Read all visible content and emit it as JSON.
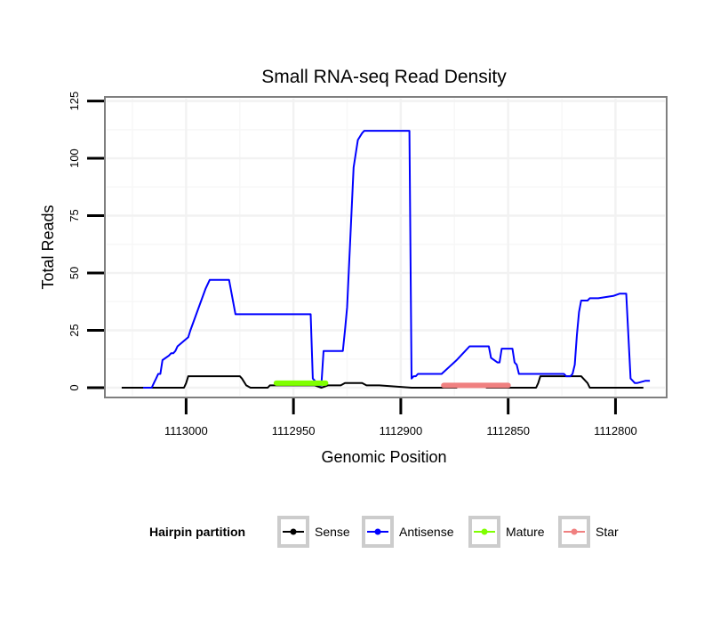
{
  "chart_data": {
    "type": "line",
    "title": "Small RNA-seq Read Density",
    "xlabel": "Genomic Position",
    "ylabel": "Total Reads",
    "x_reversed": true,
    "xlim": [
      1113037,
      1112777
    ],
    "ylim": [
      -3.5,
      126
    ],
    "x_ticks": [
      1113000,
      1112950,
      1112900,
      1112850,
      1112800
    ],
    "x_tick_labels": [
      "1113000",
      "1112950",
      "1112900",
      "1112850",
      "1112800"
    ],
    "y_ticks": [
      0,
      25,
      50,
      75,
      100,
      125
    ],
    "y_tick_labels": [
      "0",
      "25",
      "50",
      "75",
      "100",
      "125"
    ],
    "legend": {
      "title": "Hairpin partition",
      "position": "bottom",
      "entries": [
        {
          "name": "Sense",
          "color": "#000000"
        },
        {
          "name": "Antisense",
          "color": "#0000ff"
        },
        {
          "name": "Mature",
          "color": "#7fff00"
        },
        {
          "name": "Star",
          "color": "#f08080"
        }
      ]
    },
    "series": [
      {
        "name": "Sense",
        "color": "#000000",
        "x": [
          1113030,
          1113001,
          1113000,
          1112999,
          1112975,
          1112974,
          1112972,
          1112970,
          1112962,
          1112961,
          1112960,
          1112940,
          1112937,
          1112934,
          1112932,
          1112928,
          1112926,
          1112918,
          1112916,
          1112914,
          1112912,
          1112910,
          1112895,
          1112874,
          1112873,
          1112872,
          1112871,
          1112869,
          1112862,
          1112860,
          1112837,
          1112836,
          1112835,
          1112827,
          1112816,
          1112815,
          1112813,
          1112812,
          1112787
        ],
        "y": [
          0,
          0,
          2,
          5,
          5,
          4,
          1,
          0,
          0,
          1,
          1,
          1,
          0,
          1,
          1,
          1,
          2,
          2,
          1,
          1,
          1,
          1,
          0,
          0,
          1,
          1,
          1,
          1,
          1,
          0,
          0,
          2,
          5,
          5,
          5,
          4,
          2,
          0,
          0
        ]
      },
      {
        "name": "Antisense",
        "color": "#0000ff",
        "x": [
          1113020,
          1113016,
          1113015,
          1113014,
          1113013,
          1113012,
          1113011,
          1113008,
          1113007,
          1113006,
          1113005,
          1113004,
          1112999,
          1112998,
          1112991,
          1112990,
          1112989,
          1112988,
          1112987,
          1112986,
          1112985,
          1112984,
          1112983,
          1112982,
          1112981,
          1112980,
          1112977,
          1112943,
          1112942,
          1112941,
          1112938,
          1112937,
          1112936,
          1112927,
          1112926,
          1112925,
          1112922,
          1112920,
          1112918,
          1112917,
          1112914,
          1112912,
          1112911,
          1112906,
          1112905,
          1112904,
          1112896,
          1112895,
          1112894,
          1112893,
          1112892,
          1112891,
          1112890,
          1112889,
          1112888,
          1112887,
          1112882,
          1112881,
          1112874,
          1112873,
          1112870,
          1112868,
          1112859,
          1112858,
          1112855,
          1112854,
          1112853,
          1112852,
          1112851,
          1112850,
          1112849,
          1112848,
          1112847,
          1112846,
          1112845,
          1112827,
          1112826,
          1112825,
          1112824,
          1112823,
          1112822,
          1112821,
          1112820,
          1112819,
          1112818,
          1112817,
          1112816,
          1112815,
          1112814,
          1112813,
          1112812,
          1112810,
          1112808,
          1112801,
          1112798,
          1112795,
          1112793,
          1112792,
          1112791,
          1112790,
          1112786,
          1112785,
          1112784
        ],
        "y": [
          0,
          0,
          2,
          4,
          6,
          6,
          12,
          14,
          15,
          15,
          16,
          18,
          22,
          25,
          43,
          45,
          47,
          47,
          47,
          47,
          47,
          47,
          47,
          47,
          47,
          47,
          32,
          32,
          32,
          4,
          1,
          1,
          16,
          16,
          25,
          35,
          96,
          108,
          111,
          112,
          112,
          112,
          112,
          112,
          112,
          112,
          112,
          4,
          5,
          5,
          6,
          6,
          6,
          6,
          6,
          6,
          6,
          6,
          12,
          13,
          16,
          18,
          18,
          13,
          11,
          11,
          17,
          17,
          17,
          17,
          17,
          17,
          11,
          10,
          6,
          6,
          6,
          6,
          6,
          5,
          5,
          5,
          6,
          10,
          23,
          33,
          38,
          38,
          38,
          38,
          39,
          39,
          39,
          40,
          41,
          41,
          4,
          3,
          2,
          2,
          3,
          3,
          3
        ]
      }
    ],
    "segments": [
      {
        "name": "Mature",
        "color": "#7fff00",
        "x_start": 1112958,
        "x_end": 1112935,
        "y": 2
      },
      {
        "name": "Star",
        "color": "#f08080",
        "x_start": 1112880,
        "x_end": 1112850,
        "y": 1
      }
    ]
  }
}
